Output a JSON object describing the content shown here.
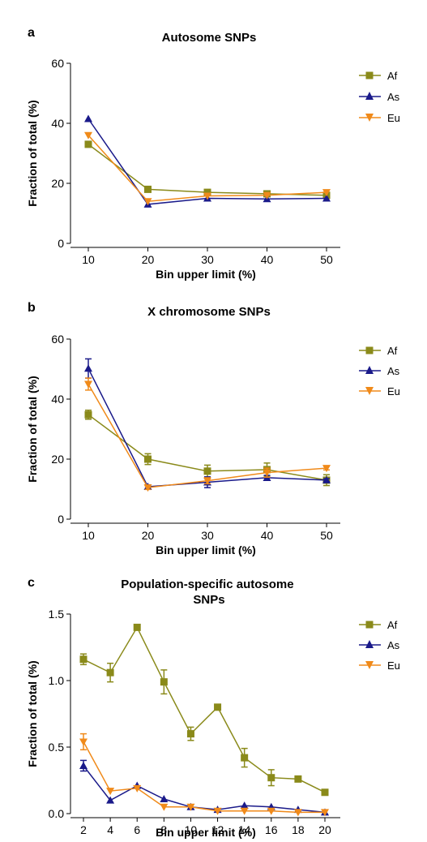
{
  "chart_data": [
    {
      "panel": "a",
      "type": "line",
      "title": "Autosome SNPs",
      "xlabel": "Bin upper limit (%)",
      "ylabel": "Fraction of total (%)",
      "x": [
        10,
        20,
        30,
        40,
        50
      ],
      "xticks": [
        10,
        20,
        30,
        40,
        50
      ],
      "yticks": [
        0,
        20,
        40,
        60
      ],
      "ytick_labels": [
        "0",
        "20",
        "40",
        "60"
      ],
      "xlim": [
        10,
        50
      ],
      "ylim": [
        0,
        60
      ],
      "legend_position": "right",
      "series": [
        {
          "name": "Af",
          "marker": "square",
          "color": "#8a8a1a",
          "values": [
            33.0,
            18.0,
            17.0,
            16.5,
            16.0
          ],
          "errors": [
            0,
            0,
            0,
            0,
            0
          ]
        },
        {
          "name": "As",
          "marker": "triangle-up",
          "color": "#1a1a8a",
          "values": [
            41.5,
            13.0,
            15.0,
            14.8,
            15.0
          ],
          "errors": [
            0,
            0,
            0,
            0,
            0
          ]
        },
        {
          "name": "Eu",
          "marker": "triangle-down",
          "color": "#f08a1a",
          "values": [
            36.0,
            14.0,
            15.8,
            16.0,
            17.0
          ],
          "errors": [
            0,
            0,
            0,
            0,
            0
          ]
        }
      ]
    },
    {
      "panel": "b",
      "type": "line",
      "title": "X chromosome SNPs",
      "xlabel": "Bin upper limit (%)",
      "ylabel": "Fraction of total (%)",
      "x": [
        10,
        20,
        30,
        40,
        50
      ],
      "xticks": [
        10,
        20,
        30,
        40,
        50
      ],
      "yticks": [
        0,
        20,
        40,
        60
      ],
      "ytick_labels": [
        "0",
        "20",
        "40",
        "60"
      ],
      "xlim": [
        10,
        50
      ],
      "ylim": [
        0,
        60
      ],
      "legend_position": "right",
      "series": [
        {
          "name": "Af",
          "marker": "square",
          "color": "#8a8a1a",
          "values": [
            34.8,
            20.0,
            16.0,
            16.5,
            13.0
          ],
          "errors": [
            1.5,
            1.8,
            2.0,
            2.2,
            1.8
          ]
        },
        {
          "name": "As",
          "marker": "triangle-up",
          "color": "#1a1a8a",
          "values": [
            50.2,
            10.8,
            12.3,
            13.8,
            13.0
          ],
          "errors": [
            3.2,
            0.6,
            1.8,
            0.8,
            0.5
          ]
        },
        {
          "name": "Eu",
          "marker": "triangle-down",
          "color": "#f08a1a",
          "values": [
            45.0,
            10.5,
            12.8,
            15.5,
            17.0
          ],
          "errors": [
            2.0,
            0.6,
            1.0,
            1.5,
            0.6
          ]
        }
      ]
    },
    {
      "panel": "c",
      "type": "line",
      "title": "Population-specific autosome\nSNPs",
      "xlabel": "Bin upper limit (%)",
      "ylabel": "Fraction of total (%)",
      "x": [
        2,
        4,
        6,
        8,
        10,
        12,
        14,
        16,
        18,
        20
      ],
      "xticks": [
        2,
        4,
        6,
        8,
        10,
        12,
        14,
        16,
        18,
        20
      ],
      "yticks": [
        0,
        0.5,
        1.0,
        1.5
      ],
      "ytick_labels": [
        "0.0",
        "0.5",
        "1.0",
        "1.5"
      ],
      "xlim": [
        2,
        20
      ],
      "ylim": [
        0,
        1.5
      ],
      "legend_position": "right",
      "series": [
        {
          "name": "Af",
          "marker": "square",
          "color": "#8a8a1a",
          "values": [
            1.16,
            1.06,
            1.4,
            0.99,
            0.6,
            0.8,
            0.42,
            0.27,
            0.26,
            0.16
          ],
          "errors": [
            0.04,
            0.07,
            0.0,
            0.09,
            0.05,
            0.0,
            0.07,
            0.06,
            0.0,
            0.0
          ]
        },
        {
          "name": "As",
          "marker": "triangle-up",
          "color": "#1a1a8a",
          "values": [
            0.36,
            0.1,
            0.21,
            0.11,
            0.05,
            0.03,
            0.06,
            0.05,
            0.03,
            0.01
          ],
          "errors": [
            0.04,
            0.0,
            0.0,
            0.0,
            0.0,
            0.0,
            0.0,
            0.0,
            0.0,
            0.0
          ]
        },
        {
          "name": "Eu",
          "marker": "triangle-down",
          "color": "#f08a1a",
          "values": [
            0.54,
            0.17,
            0.19,
            0.05,
            0.05,
            0.02,
            0.02,
            0.02,
            0.01,
            0.01
          ],
          "errors": [
            0.06,
            0.0,
            0.0,
            0.0,
            0.0,
            0.0,
            0.0,
            0.0,
            0.0,
            0.0
          ]
        }
      ]
    }
  ]
}
